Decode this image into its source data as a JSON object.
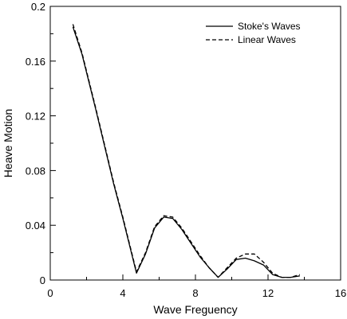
{
  "chart_data": {
    "type": "line",
    "title": "",
    "xlabel": "Wave Freguency",
    "ylabel": "Heave Motion",
    "xlim": [
      0,
      16
    ],
    "ylim": [
      0,
      0.2
    ],
    "xticks": [
      0,
      4,
      8,
      12,
      16
    ],
    "xtick_labels": [
      "0",
      "4",
      "8",
      "12",
      "16"
    ],
    "xminor": [
      2,
      6,
      10,
      14
    ],
    "yticks": [
      0,
      0.04,
      0.08,
      0.12,
      0.16,
      0.2
    ],
    "ytick_labels": [
      "0",
      "0.04",
      "0.08",
      "0.12",
      "0.16",
      "0.2"
    ],
    "yminor": [
      0.02,
      0.06,
      0.1,
      0.14,
      0.18
    ],
    "grid": false,
    "legend_position": "top-right",
    "series": [
      {
        "name": "Stoke's Waves",
        "style": "solid",
        "color": "#000000",
        "x": [
          1.25,
          1.75,
          2.5,
          3.5,
          4.0,
          4.75,
          5.25,
          5.75,
          6.25,
          6.75,
          7.25,
          7.75,
          8.25,
          8.75,
          9.25,
          9.75,
          10.25,
          10.75,
          11.25,
          11.75,
          12.25,
          12.75,
          13.25,
          13.75
        ],
        "y": [
          0.185,
          0.165,
          0.125,
          0.07,
          0.045,
          0.005,
          0.019,
          0.038,
          0.046,
          0.045,
          0.037,
          0.027,
          0.017,
          0.009,
          0.002,
          0.008,
          0.015,
          0.016,
          0.014,
          0.011,
          0.004,
          0.002,
          0.002,
          0.003
        ]
      },
      {
        "name": "Linear Waves",
        "style": "dashed",
        "color": "#000000",
        "x": [
          1.25,
          1.75,
          2.5,
          3.5,
          4.0,
          4.75,
          5.25,
          5.75,
          6.25,
          6.75,
          7.25,
          7.75,
          8.25,
          8.75,
          9.25,
          9.75,
          10.25,
          10.75,
          11.25,
          11.75,
          12.25,
          12.75,
          13.25,
          13.75
        ],
        "y": [
          0.187,
          0.166,
          0.126,
          0.071,
          0.046,
          0.006,
          0.02,
          0.039,
          0.047,
          0.046,
          0.038,
          0.028,
          0.018,
          0.009,
          0.002,
          0.009,
          0.016,
          0.019,
          0.019,
          0.013,
          0.005,
          0.002,
          0.002,
          0.004
        ]
      }
    ]
  }
}
